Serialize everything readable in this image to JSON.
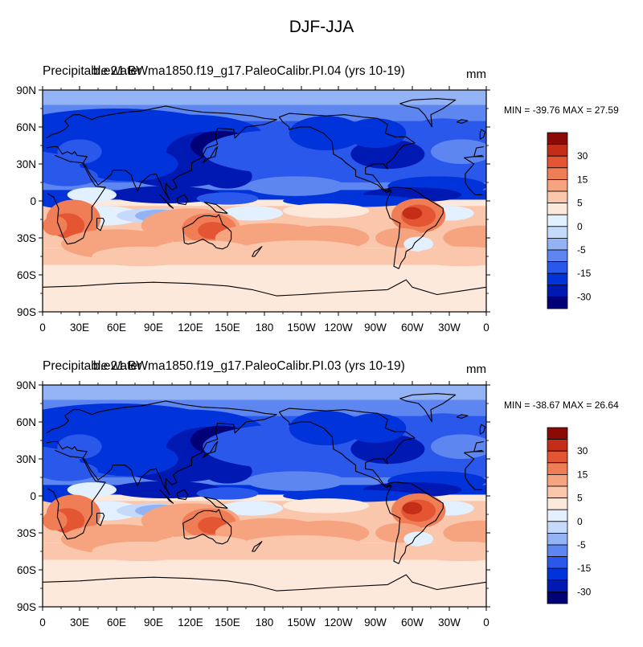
{
  "title": "DJF-JJA",
  "colors": {
    "levels": [
      "#000077",
      "#0019b2",
      "#0033d9",
      "#2958eb",
      "#5e86f0",
      "#94b3f5",
      "#c5d9fa",
      "#e2f0ff",
      "#fde8dc",
      "#fbc7ac",
      "#f6a37f",
      "#ef7d56",
      "#e45533",
      "#c42d17",
      "#8c0a05"
    ],
    "land": "#000000"
  },
  "colorbar": {
    "labels": [
      "30",
      "15",
      "5",
      "0",
      "-5",
      "-15",
      "-30"
    ]
  },
  "axes": {
    "y_ticks": [
      "90N",
      "60N",
      "30N",
      "0",
      "30S",
      "60S",
      "90S"
    ],
    "x_ticks": [
      "0",
      "30E",
      "60E",
      "90E",
      "120E",
      "150E",
      "180",
      "150W",
      "120W",
      "90W",
      "60W",
      "30W",
      "0"
    ]
  },
  "panels": [
    {
      "variable": "Precipitable water",
      "case": "b.e21.BWma1850.f19_g17.PaleoCalibr.PI.04 (yrs 10-19)",
      "units": "mm",
      "stats": "MIN = -39.76 MAX =  27.59"
    },
    {
      "variable": "Precipitable water",
      "case": "b.e21.BWma1850.f19_g17.PaleoCalibr.PI.03 (yrs 10-19)",
      "units": "mm",
      "stats": "MIN = -38.67 MAX =  26.64"
    }
  ],
  "chart_data": [
    {
      "type": "heatmap",
      "title": "DJF-JJA",
      "subtitle": "b.e21.BWma1850.f19_g17.PaleoCalibr.PI.04 (yrs 10-19)",
      "variable": "Precipitable water",
      "units": "mm",
      "x_range": [
        0,
        360
      ],
      "y_range": [
        -90,
        90
      ],
      "levels": [
        -40,
        -30,
        -20,
        -15,
        -10,
        -5,
        -2,
        0,
        2,
        5,
        10,
        15,
        20,
        30,
        40
      ],
      "min": -39.76,
      "max": 27.59,
      "lat_profile": [
        {
          "lat": 90,
          "value": -6
        },
        {
          "lat": 75,
          "value": -12
        },
        {
          "lat": 60,
          "value": -16
        },
        {
          "lat": 45,
          "value": -20
        },
        {
          "lat": 30,
          "value": -22
        },
        {
          "lat": 15,
          "value": -18
        },
        {
          "lat": 5,
          "value": -30
        },
        {
          "lat": 0,
          "value": 3
        },
        {
          "lat": -10,
          "value": 8
        },
        {
          "lat": -25,
          "value": 10
        },
        {
          "lat": -40,
          "value": 6
        },
        {
          "lat": -55,
          "value": 3
        },
        {
          "lat": -75,
          "value": 1
        },
        {
          "lat": -90,
          "value": 0.5
        }
      ]
    },
    {
      "type": "heatmap",
      "title": "DJF-JJA",
      "subtitle": "b.e21.BWma1850.f19_g17.PaleoCalibr.PI.03 (yrs 10-19)",
      "variable": "Precipitable water",
      "units": "mm",
      "x_range": [
        0,
        360
      ],
      "y_range": [
        -90,
        90
      ],
      "levels": [
        -40,
        -30,
        -20,
        -15,
        -10,
        -5,
        -2,
        0,
        2,
        5,
        10,
        15,
        20,
        30,
        40
      ],
      "min": -38.67,
      "max": 26.64,
      "lat_profile": [
        {
          "lat": 90,
          "value": -6
        },
        {
          "lat": 75,
          "value": -11
        },
        {
          "lat": 60,
          "value": -15
        },
        {
          "lat": 45,
          "value": -19
        },
        {
          "lat": 30,
          "value": -21
        },
        {
          "lat": 15,
          "value": -17
        },
        {
          "lat": 5,
          "value": -29
        },
        {
          "lat": 0,
          "value": 3
        },
        {
          "lat": -10,
          "value": 7
        },
        {
          "lat": -25,
          "value": 9
        },
        {
          "lat": -40,
          "value": 6
        },
        {
          "lat": -55,
          "value": 3
        },
        {
          "lat": -75,
          "value": 1
        },
        {
          "lat": -90,
          "value": 0.5
        }
      ]
    }
  ]
}
